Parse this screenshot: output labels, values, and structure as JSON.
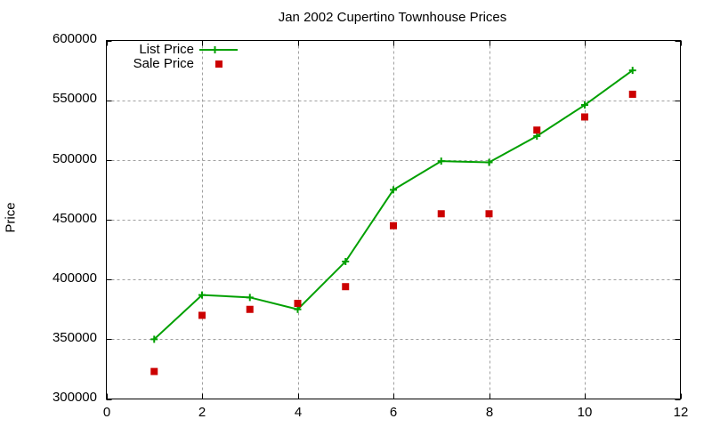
{
  "chart_data": {
    "type": "line",
    "title": "Jan 2002 Cupertino Townhouse Prices",
    "xlabel": "",
    "ylabel": "Price",
    "xlim": [
      0,
      12
    ],
    "ylim": [
      300000,
      600000
    ],
    "x_ticks": [
      "0",
      "2",
      "4",
      "6",
      "8",
      "10",
      "12"
    ],
    "y_ticks": [
      "300000",
      "350000",
      "400000",
      "450000",
      "500000",
      "550000",
      "600000"
    ],
    "grid": true,
    "legend_position": "top-left",
    "x": [
      1,
      2,
      3,
      4,
      5,
      6,
      7,
      8,
      9,
      10,
      11
    ],
    "series": [
      {
        "name": "List Price",
        "style": "linespoints",
        "marker": "plus",
        "color": "#00a000",
        "values": [
          350000,
          387000,
          385000,
          375000,
          415000,
          475000,
          499000,
          498000,
          520000,
          546000,
          575000
        ]
      },
      {
        "name": "Sale Price",
        "style": "points",
        "marker": "square",
        "color": "#cc0000",
        "values": [
          323000,
          370000,
          375000,
          380000,
          394000,
          445000,
          455000,
          455000,
          525000,
          536000,
          555000
        ]
      }
    ]
  },
  "legend": {
    "items": [
      {
        "label": "List Price",
        "color": "#00a000"
      },
      {
        "label": "Sale Price",
        "color": "#cc0000"
      }
    ]
  }
}
